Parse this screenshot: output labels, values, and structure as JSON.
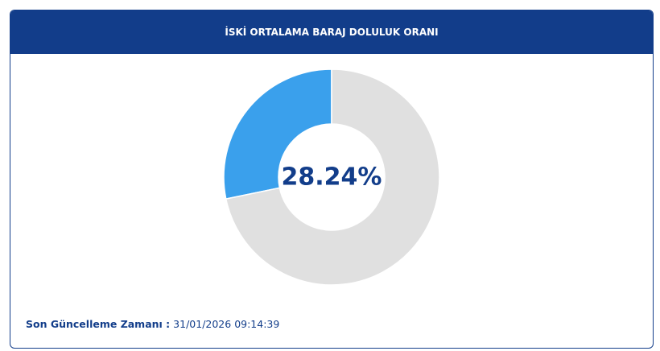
{
  "chart_data": {
    "type": "donut",
    "title": "İSKİ ORTALAMA BARAJ DOLULUK ORANI",
    "values": [
      28.24,
      71.76
    ],
    "value_labels": [
      "28.24%",
      null
    ],
    "colors": [
      "#3aa0ec",
      "#e0e0e0"
    ]
  },
  "footer": {
    "label": "Son Güncelleme Zamanı :",
    "value": "31/01/2026 09:14:39"
  }
}
